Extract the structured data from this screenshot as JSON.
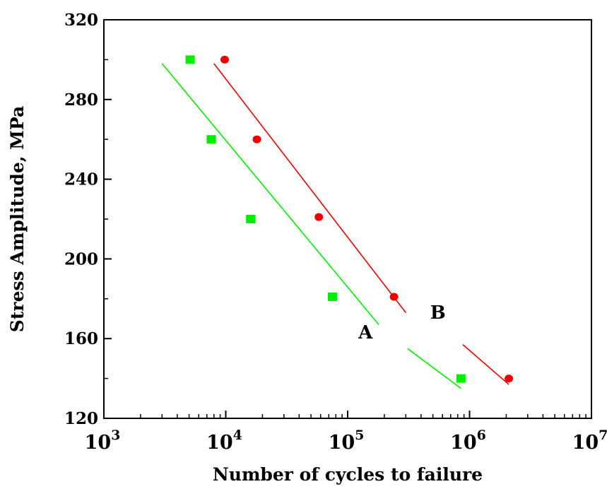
{
  "chart_data": {
    "type": "scatter",
    "title": "",
    "xlabel": "Number of cycles to failure",
    "ylabel": "Stress Amplitude, MPa",
    "xscale": "log",
    "xlim": [
      1000,
      10000000
    ],
    "ylim": [
      120,
      320
    ],
    "y_ticks": [
      120,
      160,
      200,
      240,
      280,
      320
    ],
    "y_tick_labels": [
      "120",
      "160",
      "200",
      "240",
      "280",
      "320"
    ],
    "x_ticks": [
      1000,
      10000,
      100000,
      1000000,
      10000000
    ],
    "x_tick_labels": [
      {
        "base": "10",
        "exp": "3"
      },
      {
        "base": "10",
        "exp": "4"
      },
      {
        "base": "10",
        "exp": "5"
      },
      {
        "base": "10",
        "exp": "6"
      },
      {
        "base": "10",
        "exp": "7"
      }
    ],
    "grid": false,
    "series": [
      {
        "label": "A",
        "color": "#00ee00",
        "marker": "square",
        "points": [
          {
            "x": 5100,
            "y": 300
          },
          {
            "x": 7600,
            "y": 260
          },
          {
            "x": 16000,
            "y": 220
          },
          {
            "x": 75000,
            "y": 181
          },
          {
            "x": 850000,
            "y": 140
          }
        ],
        "fit_segments": [
          [
            {
              "x": 3000,
              "y": 298
            },
            {
              "x": 180000,
              "y": 167
            }
          ],
          [
            {
              "x": 310000,
              "y": 155
            },
            {
              "x": 850000,
              "y": 135
            }
          ]
        ]
      },
      {
        "label": "B",
        "color": "#ee0000",
        "marker": "circle",
        "points": [
          {
            "x": 9800,
            "y": 300
          },
          {
            "x": 18000,
            "y": 260
          },
          {
            "x": 58000,
            "y": 221
          },
          {
            "x": 240000,
            "y": 181
          },
          {
            "x": 2100000,
            "y": 140
          }
        ],
        "fit_segments": [
          [
            {
              "x": 8000,
              "y": 298
            },
            {
              "x": 300000,
              "y": 173
            }
          ],
          [
            {
              "x": 880000,
              "y": 157
            },
            {
              "x": 2100000,
              "y": 137
            }
          ]
        ]
      }
    ],
    "annotations": [
      {
        "text": "A",
        "x": 140000,
        "y": 160
      },
      {
        "text": "B",
        "x": 550000,
        "y": 170
      }
    ]
  }
}
